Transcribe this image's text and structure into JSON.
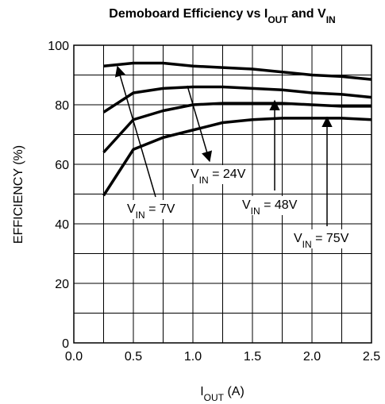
{
  "chart_data": {
    "type": "line",
    "title": [
      "Demoboard Efficiency vs I",
      "OUT",
      " and V",
      "IN"
    ],
    "xlabel": [
      "I",
      "OUT",
      " (A)"
    ],
    "ylabel": "EFFICIENCY (%)",
    "x": [
      0.25,
      0.5,
      0.75,
      1.0,
      1.25,
      1.5,
      1.75,
      2.0,
      2.25,
      2.5
    ],
    "series": [
      {
        "color": "#000000",
        "values": [
          93,
          94,
          94,
          93,
          92.5,
          92,
          91,
          90,
          89.5,
          88.5
        ]
      },
      {
        "color": "#000000",
        "values": [
          77.5,
          84,
          85.5,
          86,
          86,
          85.5,
          85,
          84,
          83.5,
          82.5
        ]
      },
      {
        "color": "#000000",
        "values": [
          64,
          75,
          78,
          80,
          80.5,
          80.5,
          80.5,
          80,
          79.5,
          79.5
        ]
      },
      {
        "color": "#000000",
        "values": [
          49.5,
          65,
          69,
          71.5,
          74,
          75,
          75.5,
          75.5,
          75.5,
          75
        ]
      }
    ],
    "annotations": [
      [
        "V",
        "IN",
        " = 7V"
      ],
      [
        "V",
        "IN",
        " = 24V"
      ],
      [
        "V",
        "IN",
        " = 48V"
      ],
      [
        "V",
        "IN",
        " = 75V"
      ]
    ],
    "xlim": [
      0,
      2.5
    ],
    "ylim": [
      0,
      100
    ],
    "xticks": [
      {
        "value": 0,
        "label": "0.0"
      },
      0.5,
      {
        "value": 1,
        "label": "1.0"
      },
      1.5,
      {
        "value": 2,
        "label": "2.0"
      },
      2.5
    ],
    "yticks": [
      0,
      20,
      40,
      60,
      80,
      100
    ],
    "xgrid": [
      0.25,
      0.75,
      1.25,
      1.75,
      2.25
    ],
    "ygrid": [
      10,
      30,
      50,
      70,
      90
    ],
    "grid": true
  }
}
